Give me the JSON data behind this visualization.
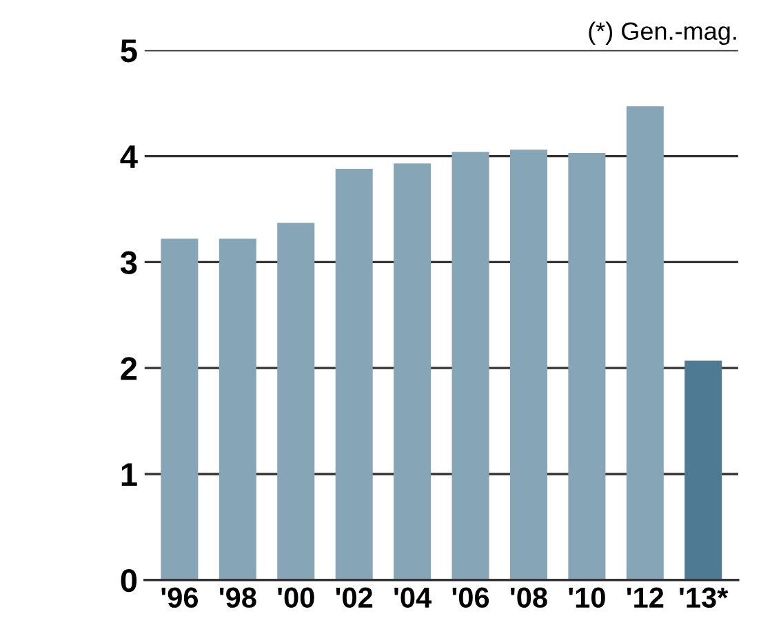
{
  "chart_data": {
    "type": "bar",
    "categories": [
      "'96",
      "'98",
      "'00",
      "'02",
      "'04",
      "'06",
      "'08",
      "'10",
      "'12",
      "'13*"
    ],
    "values": [
      3.22,
      3.22,
      3.37,
      3.88,
      3.93,
      4.04,
      4.06,
      4.03,
      4.47,
      2.07
    ],
    "colors": [
      "#86a6b8",
      "#86a6b8",
      "#86a6b8",
      "#86a6b8",
      "#86a6b8",
      "#86a6b8",
      "#86a6b8",
      "#86a6b8",
      "#86a6b8",
      "#4f7a93"
    ],
    "ylim": [
      0,
      5
    ],
    "yticks": [
      0,
      1,
      2,
      3,
      4,
      5
    ],
    "grid": "y",
    "annotations": [
      "(*) Gen.-mag."
    ]
  }
}
